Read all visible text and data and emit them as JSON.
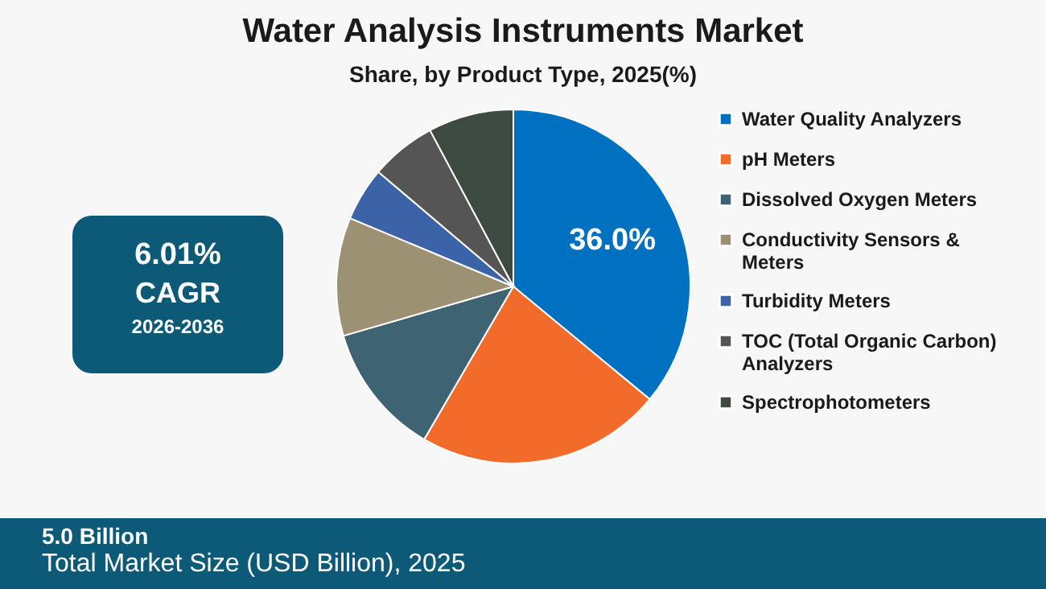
{
  "chart_data": {
    "type": "pie",
    "title": "Water Analysis Instruments Market",
    "subtitle": "Share, by Product Type, 2025(%)",
    "categories": [
      "Water Quality Analyzers",
      "pH Meters",
      "Dissolved Oxygen Meters",
      "Conductivity Sensors & Meters",
      "Turbidity Meters",
      "TOC (Total Organic Carbon) Analyzers",
      "Spectrophotometers"
    ],
    "values": [
      36.0,
      22.4,
      12.1,
      10.8,
      4.9,
      6.0,
      7.8
    ],
    "colors": [
      "#0070c0",
      "#f26b2a",
      "#3e6373",
      "#9c9172",
      "#3c62a8",
      "#555555",
      "#3d4a40"
    ],
    "value_labels": [
      "36.0%",
      null,
      null,
      null,
      null,
      null,
      null
    ],
    "legend": "right",
    "annotations": [
      "6.01%",
      "CAGR",
      "2026-2036",
      "5.0 Billion",
      "Total Market Size (USD Billion), 2025"
    ]
  }
}
